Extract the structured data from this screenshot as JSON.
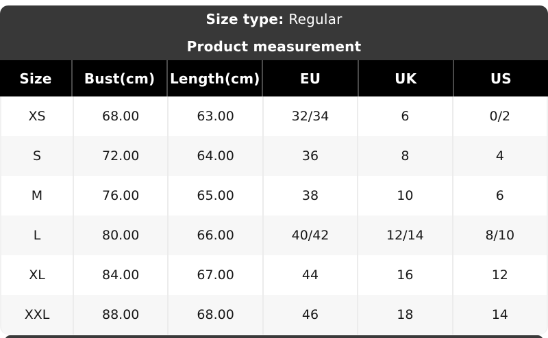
{
  "banner": {
    "size_type_label": "Size type:",
    "size_type_value": "Regular",
    "subtitle": "Product measurement"
  },
  "colors": {
    "banner_bg": "#383838",
    "header_bg": "#000000",
    "header_text": "#ffffff",
    "row_bg": "#ffffff",
    "row_alt_bg": "#f7f7f7",
    "separator": "#ececec",
    "body_text": "#161616"
  },
  "chart_data": {
    "type": "table",
    "title": "Product measurement",
    "size_type": "Regular",
    "columns": [
      "Size",
      "Bust(cm)",
      "Length(cm)",
      "EU",
      "UK",
      "US"
    ],
    "rows": [
      [
        "XS",
        "68.00",
        "63.00",
        "32/34",
        "6",
        "0/2"
      ],
      [
        "S",
        "72.00",
        "64.00",
        "36",
        "8",
        "4"
      ],
      [
        "M",
        "76.00",
        "65.00",
        "38",
        "10",
        "6"
      ],
      [
        "L",
        "80.00",
        "66.00",
        "40/42",
        "12/14",
        "8/10"
      ],
      [
        "XL",
        "84.00",
        "67.00",
        "44",
        "16",
        "12"
      ],
      [
        "XXL",
        "88.00",
        "68.00",
        "46",
        "18",
        "14"
      ]
    ]
  }
}
